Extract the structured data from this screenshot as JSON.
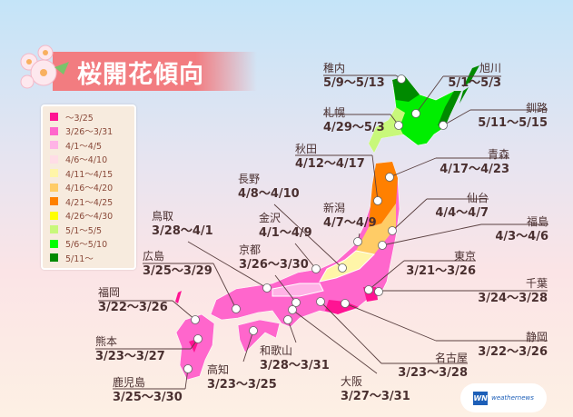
{
  "title": "桜開花傾向",
  "legend": [
    {
      "label": "～3/25",
      "color": "#ff1493"
    },
    {
      "label": "3/26～3/31",
      "color": "#ff66cc"
    },
    {
      "label": "4/1～4/5",
      "color": "#ffb3e6"
    },
    {
      "label": "4/6～4/10",
      "color": "#ffdde6"
    },
    {
      "label": "4/11～4/15",
      "color": "#fff5a8"
    },
    {
      "label": "4/16～4/20",
      "color": "#ffcc66"
    },
    {
      "label": "4/21～4/25",
      "color": "#ff8000"
    },
    {
      "label": "4/26～4/30",
      "color": "#ffff00"
    },
    {
      "label": "5/1～5/5",
      "color": "#c8f87a"
    },
    {
      "label": "5/6～5/10",
      "color": "#00ff00"
    },
    {
      "label": "5/11～",
      "color": "#008a00"
    }
  ],
  "cities": [
    {
      "name": "稚内",
      "date": "5/9～5/13"
    },
    {
      "name": "旭川",
      "date": "5/1～5/3"
    },
    {
      "name": "釧路",
      "date": "5/11～5/15"
    },
    {
      "name": "札幌",
      "date": "4/29～5/3"
    },
    {
      "name": "秋田",
      "date": "4/12～4/17"
    },
    {
      "name": "青森",
      "date": "4/17～4/23"
    },
    {
      "name": "仙台",
      "date": "4/4～4/7"
    },
    {
      "name": "福島",
      "date": "4/3～4/6"
    },
    {
      "name": "東京",
      "date": "3/21～3/26"
    },
    {
      "name": "千葉",
      "date": "3/24～3/28"
    },
    {
      "name": "新潟",
      "date": "4/7～4/9"
    },
    {
      "name": "長野",
      "date": "4/8～4/10"
    },
    {
      "name": "金沢",
      "date": "4/1～4/9"
    },
    {
      "name": "京都",
      "date": "3/26～3/30"
    },
    {
      "name": "鳥取",
      "date": "3/28～4/1"
    },
    {
      "name": "広島",
      "date": "3/25～3/29"
    },
    {
      "name": "福岡",
      "date": "3/22～3/26"
    },
    {
      "name": "熊本",
      "date": "3/23～3/27"
    },
    {
      "name": "鹿児島",
      "date": "3/25～3/30"
    },
    {
      "name": "高知",
      "date": "3/23～3/25"
    },
    {
      "name": "和歌山",
      "date": "3/28～3/31"
    },
    {
      "name": "大阪",
      "date": "3/27～3/31"
    },
    {
      "name": "名古屋",
      "date": "3/23～3/28"
    },
    {
      "name": "静岡",
      "date": "3/22～3/26"
    }
  ],
  "logo": {
    "mark": "WN",
    "text": "weathernews"
  }
}
